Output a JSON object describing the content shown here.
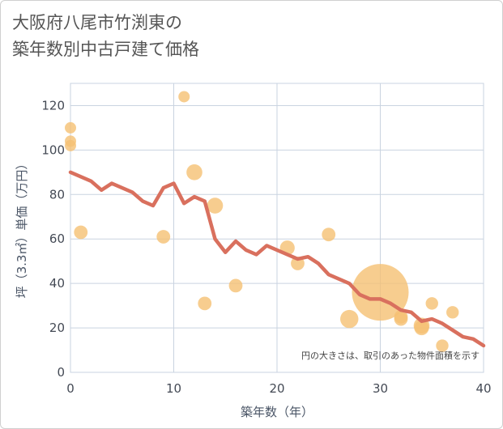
{
  "title_lines": [
    "大阪府八尾市竹渕東の",
    "築年数別中古戸建て価格"
  ],
  "chart_data": {
    "type": "scatter+line",
    "title": "大阪府八尾市竹渕東の築年数別中古戸建て価格",
    "xlabel": "築年数（年）",
    "ylabel": "坪（3.3㎡）単価（万円）",
    "xlim": [
      0,
      40
    ],
    "ylim": [
      0,
      130
    ],
    "xticks": [
      0,
      10,
      20,
      30,
      40
    ],
    "yticks": [
      0,
      20,
      40,
      60,
      80,
      100,
      120
    ],
    "grid": true,
    "note": "円の大きさは、取引のあった物件面積を示す",
    "colors": {
      "scatter": "#f5c173",
      "line": "#d9705e",
      "grid": "#c9d3e0"
    },
    "scatter": [
      {
        "x": 0,
        "y": 110,
        "size": 1
      },
      {
        "x": 0,
        "y": 104,
        "size": 1
      },
      {
        "x": 0,
        "y": 102,
        "size": 1
      },
      {
        "x": 1,
        "y": 63,
        "size": 1.2
      },
      {
        "x": 9,
        "y": 61,
        "size": 1.2
      },
      {
        "x": 11,
        "y": 124,
        "size": 1
      },
      {
        "x": 12,
        "y": 90,
        "size": 1.4
      },
      {
        "x": 13,
        "y": 31,
        "size": 1.2
      },
      {
        "x": 14,
        "y": 75,
        "size": 1.4
      },
      {
        "x": 16,
        "y": 39,
        "size": 1.2
      },
      {
        "x": 21,
        "y": 56,
        "size": 1.3
      },
      {
        "x": 22,
        "y": 49,
        "size": 1.2
      },
      {
        "x": 25,
        "y": 62,
        "size": 1.2
      },
      {
        "x": 27,
        "y": 24,
        "size": 1.6
      },
      {
        "x": 30,
        "y": 36,
        "size": 5
      },
      {
        "x": 32,
        "y": 25,
        "size": 1.2
      },
      {
        "x": 32,
        "y": 24,
        "size": 1.2
      },
      {
        "x": 34,
        "y": 21,
        "size": 1.4
      },
      {
        "x": 34,
        "y": 20,
        "size": 1.3
      },
      {
        "x": 35,
        "y": 31,
        "size": 1.1
      },
      {
        "x": 36,
        "y": 12,
        "size": 1.1
      },
      {
        "x": 37,
        "y": 27,
        "size": 1.1
      }
    ],
    "line": {
      "x": [
        0,
        1,
        2,
        3,
        4,
        5,
        6,
        7,
        8,
        9,
        10,
        11,
        12,
        13,
        14,
        15,
        16,
        17,
        18,
        19,
        20,
        21,
        22,
        23,
        24,
        25,
        26,
        27,
        28,
        29,
        30,
        31,
        32,
        33,
        34,
        35,
        36,
        37,
        38,
        39,
        40
      ],
      "y": [
        90,
        88,
        86,
        82,
        85,
        83,
        81,
        77,
        75,
        83,
        85,
        76,
        79,
        77,
        60,
        54,
        59,
        55,
        53,
        57,
        55,
        53,
        51,
        52,
        49,
        44,
        42,
        40,
        35,
        33,
        33,
        31,
        28,
        27,
        23,
        24,
        22,
        19,
        16,
        15,
        12
      ]
    }
  }
}
